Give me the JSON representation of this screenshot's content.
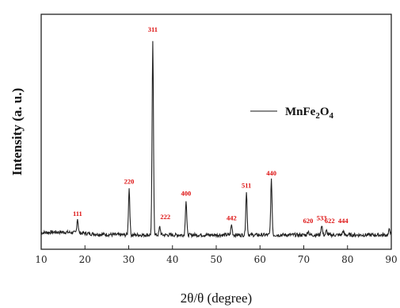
{
  "chart_data": {
    "type": "line",
    "xlabel": "2θ/θ (degree)",
    "ylabel": "Intensity (a. u.)",
    "xlim": [
      10,
      90
    ],
    "x_ticks": [
      "10",
      "20",
      "30",
      "40",
      "50",
      "60",
      "70",
      "80",
      "90"
    ],
    "y_ticks_shown": false,
    "grid": false,
    "legend": {
      "position": "top-right",
      "label_main": "MnFe",
      "sub1": "2",
      "label_mid": "O",
      "sub2": "4"
    },
    "baseline_intensity": 5,
    "series": [
      {
        "name": "MnFe2O4",
        "color": "#222222",
        "peaks": [
          {
            "x": 18.3,
            "y": 12,
            "label": "111"
          },
          {
            "x": 30.1,
            "y": 28,
            "label": "220"
          },
          {
            "x": 35.5,
            "y": 100,
            "label": "311"
          },
          {
            "x": 37.1,
            "y": 9,
            "label": "222"
          },
          {
            "x": 43.1,
            "y": 22,
            "label": "400"
          },
          {
            "x": 53.5,
            "y": 10,
            "label": "442"
          },
          {
            "x": 56.9,
            "y": 26,
            "label": "511"
          },
          {
            "x": 62.6,
            "y": 32,
            "label": "440"
          },
          {
            "x": 71.0,
            "y": 7,
            "label": "620"
          },
          {
            "x": 74.1,
            "y": 10,
            "label": "533"
          },
          {
            "x": 75.2,
            "y": 7,
            "label": "622"
          },
          {
            "x": 79.0,
            "y": 7,
            "label": "444"
          },
          {
            "x": 89.6,
            "y": 8,
            "label": ""
          }
        ]
      }
    ],
    "label_color": "#dd1111"
  }
}
